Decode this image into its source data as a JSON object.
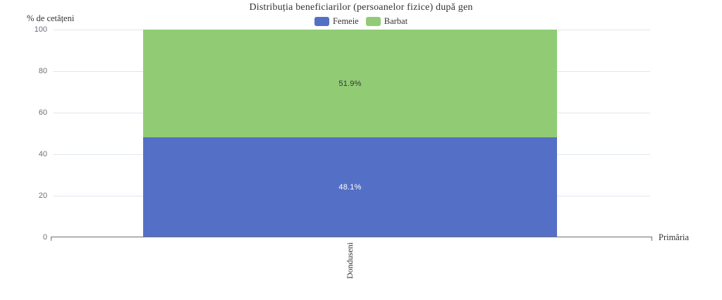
{
  "chart_data": {
    "type": "bar",
    "stacked": true,
    "title": "Distribuția beneficiarilor (persoanelor fizice) după gen",
    "categories": [
      "Donduseni"
    ],
    "xlabel": "Primăria",
    "ylabel": "% de cetățeni",
    "ylim": [
      0,
      100
    ],
    "yticks": [
      0,
      20,
      40,
      60,
      80,
      100
    ],
    "grid": true,
    "legend_position": "top",
    "series": [
      {
        "name": "Femeie",
        "color": "#5470c6",
        "values": [
          48.1
        ],
        "data_label": "48.1%",
        "data_label_color": "#ffffff"
      },
      {
        "name": "Barbat",
        "color": "#91cc75",
        "values": [
          51.9
        ],
        "data_label": "51.9%",
        "data_label_color": "#333333"
      }
    ]
  },
  "colors": {
    "background": "#ffffff",
    "grid": "#e0e6f1",
    "axis": "#6e7079",
    "tick_label": "#6e7079",
    "text": "#333333"
  }
}
